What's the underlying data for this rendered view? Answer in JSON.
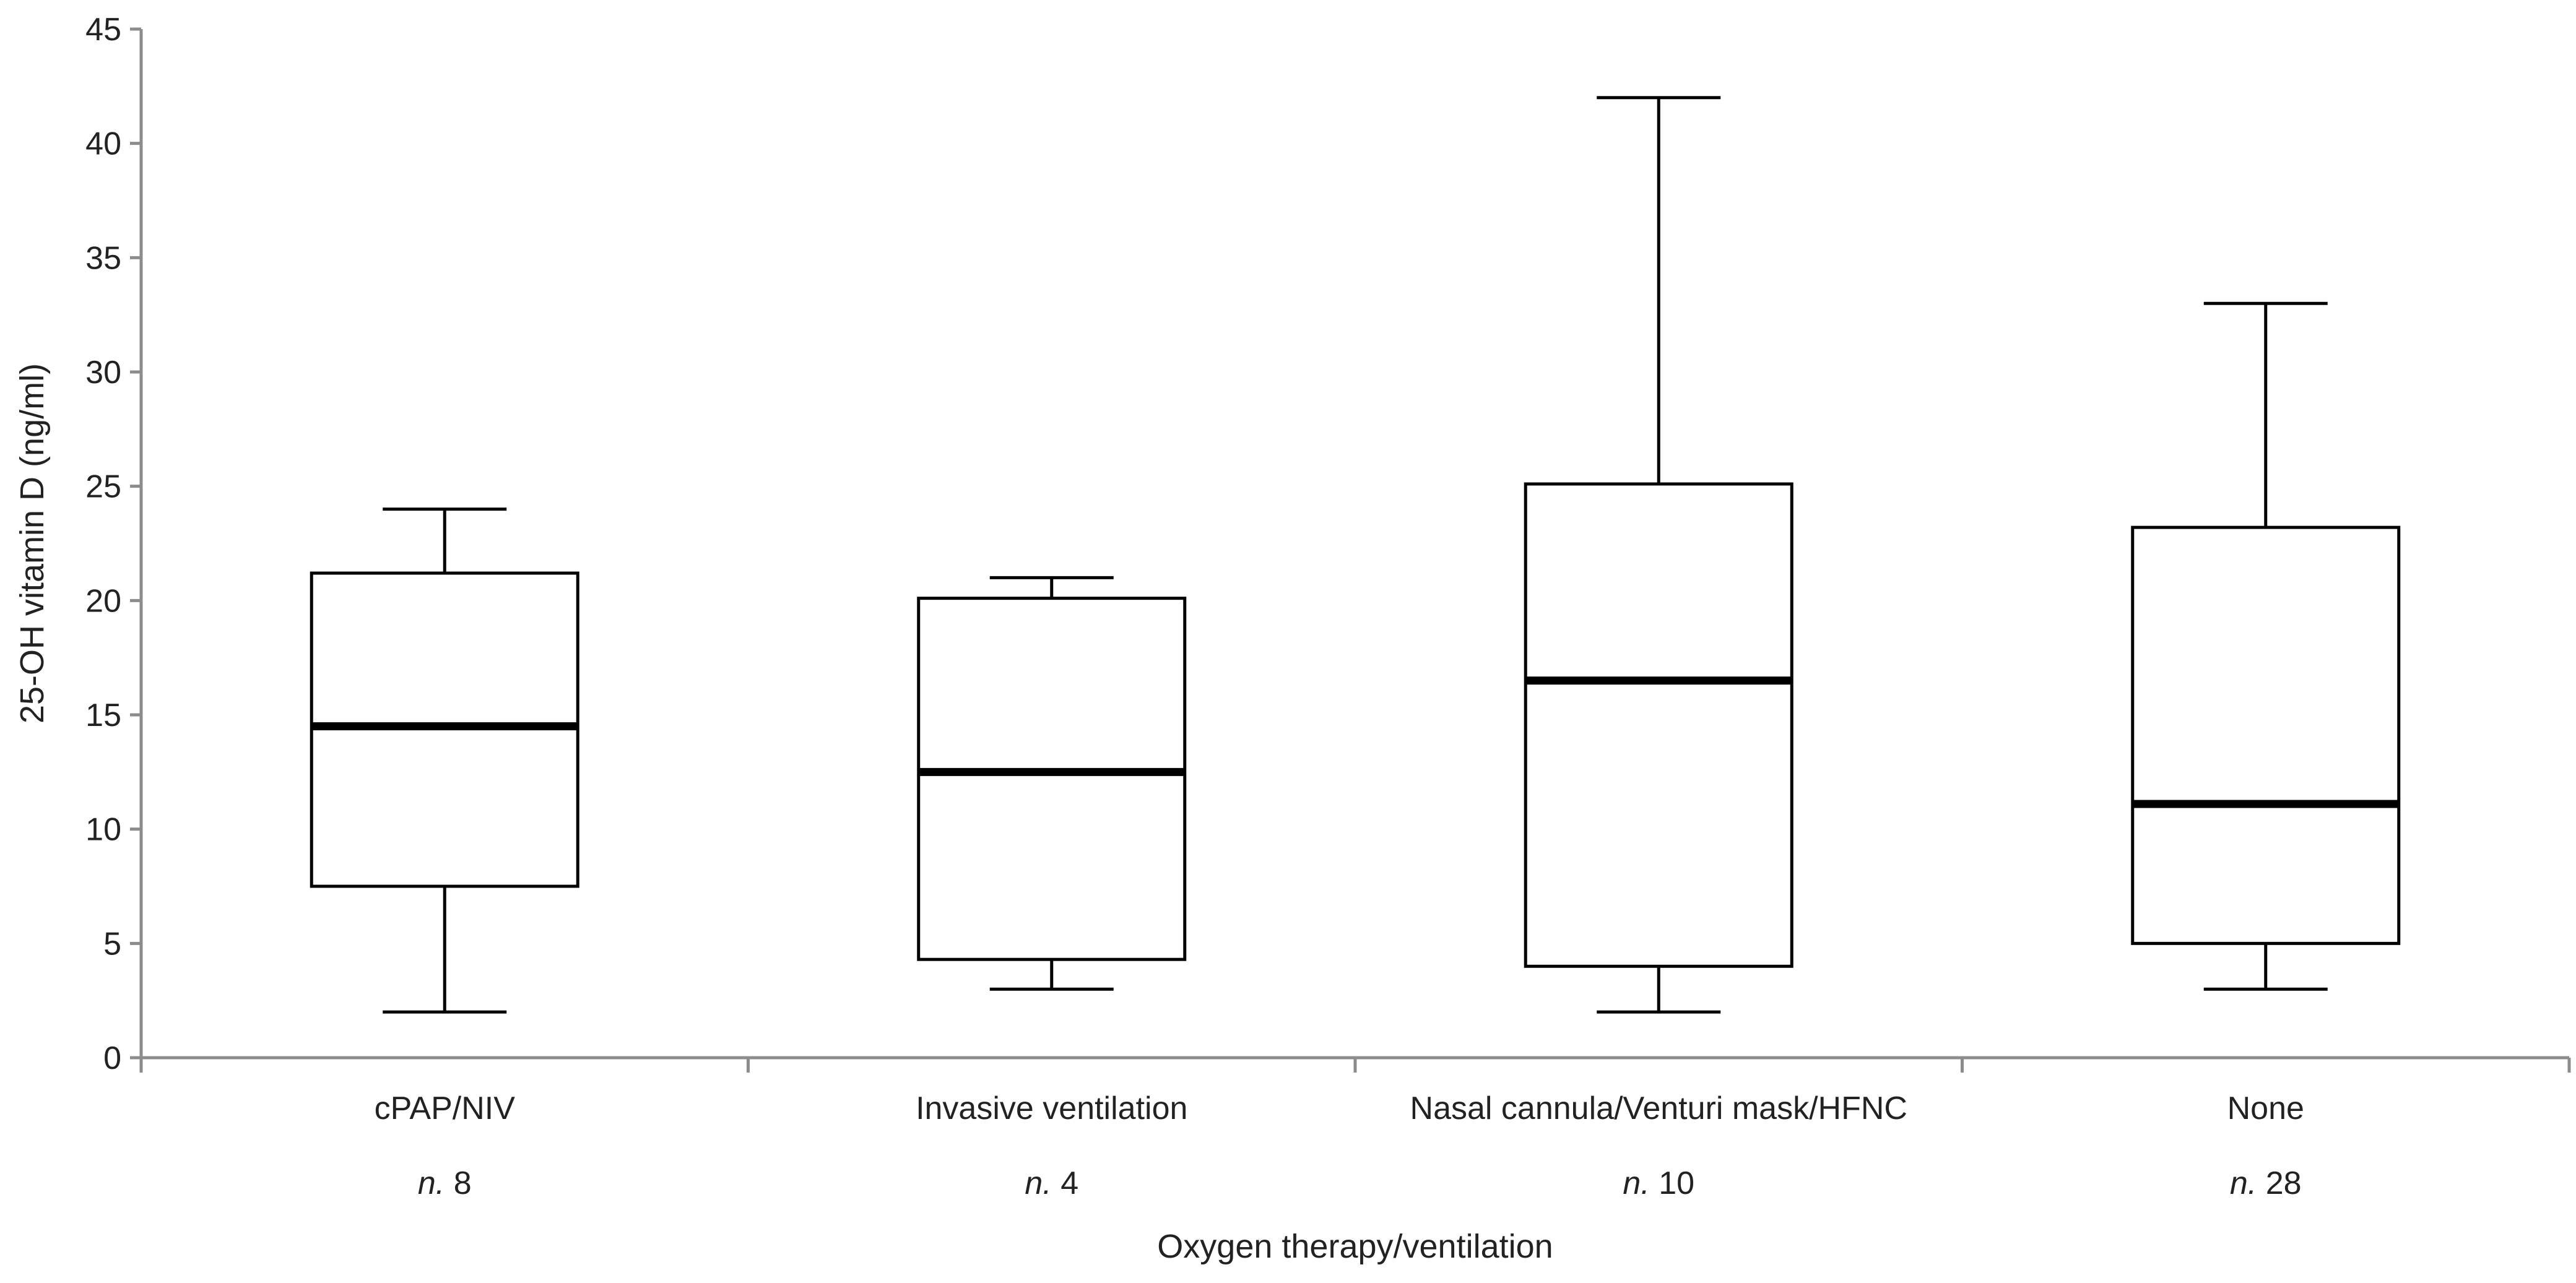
{
  "chart_data": {
    "type": "boxplot",
    "title": "",
    "xlabel": "Oxygen therapy/ventilation",
    "ylabel": "25-OH vitamin D (ng/ml)",
    "ylim": [
      0,
      45
    ],
    "yticks": [
      "0",
      "5",
      "10",
      "15",
      "20",
      "25",
      "30",
      "35",
      "40",
      "45"
    ],
    "grid": false,
    "categories": [
      {
        "name": "cPAP/NIV",
        "n_prefix": "n.",
        "n_value": " 8",
        "min": 2,
        "q1": 7.5,
        "median": 14.5,
        "q3": 21.2,
        "max": 24
      },
      {
        "name": "Invasive ventilation",
        "n_prefix": "n.",
        "n_value": " 4",
        "min": 3,
        "q1": 4.3,
        "median": 12.5,
        "q3": 20.1,
        "max": 21
      },
      {
        "name": "Nasal cannula/Venturi mask/HFNC",
        "n_prefix": "n.",
        "n_value": " 10",
        "min": 2,
        "q1": 4,
        "median": 16.5,
        "q3": 25.1,
        "max": 42
      },
      {
        "name": "None",
        "n_prefix": "n.",
        "n_value": " 28",
        "min": 3,
        "q1": 5,
        "median": 11.1,
        "q3": 23.2,
        "max": 33
      }
    ]
  }
}
